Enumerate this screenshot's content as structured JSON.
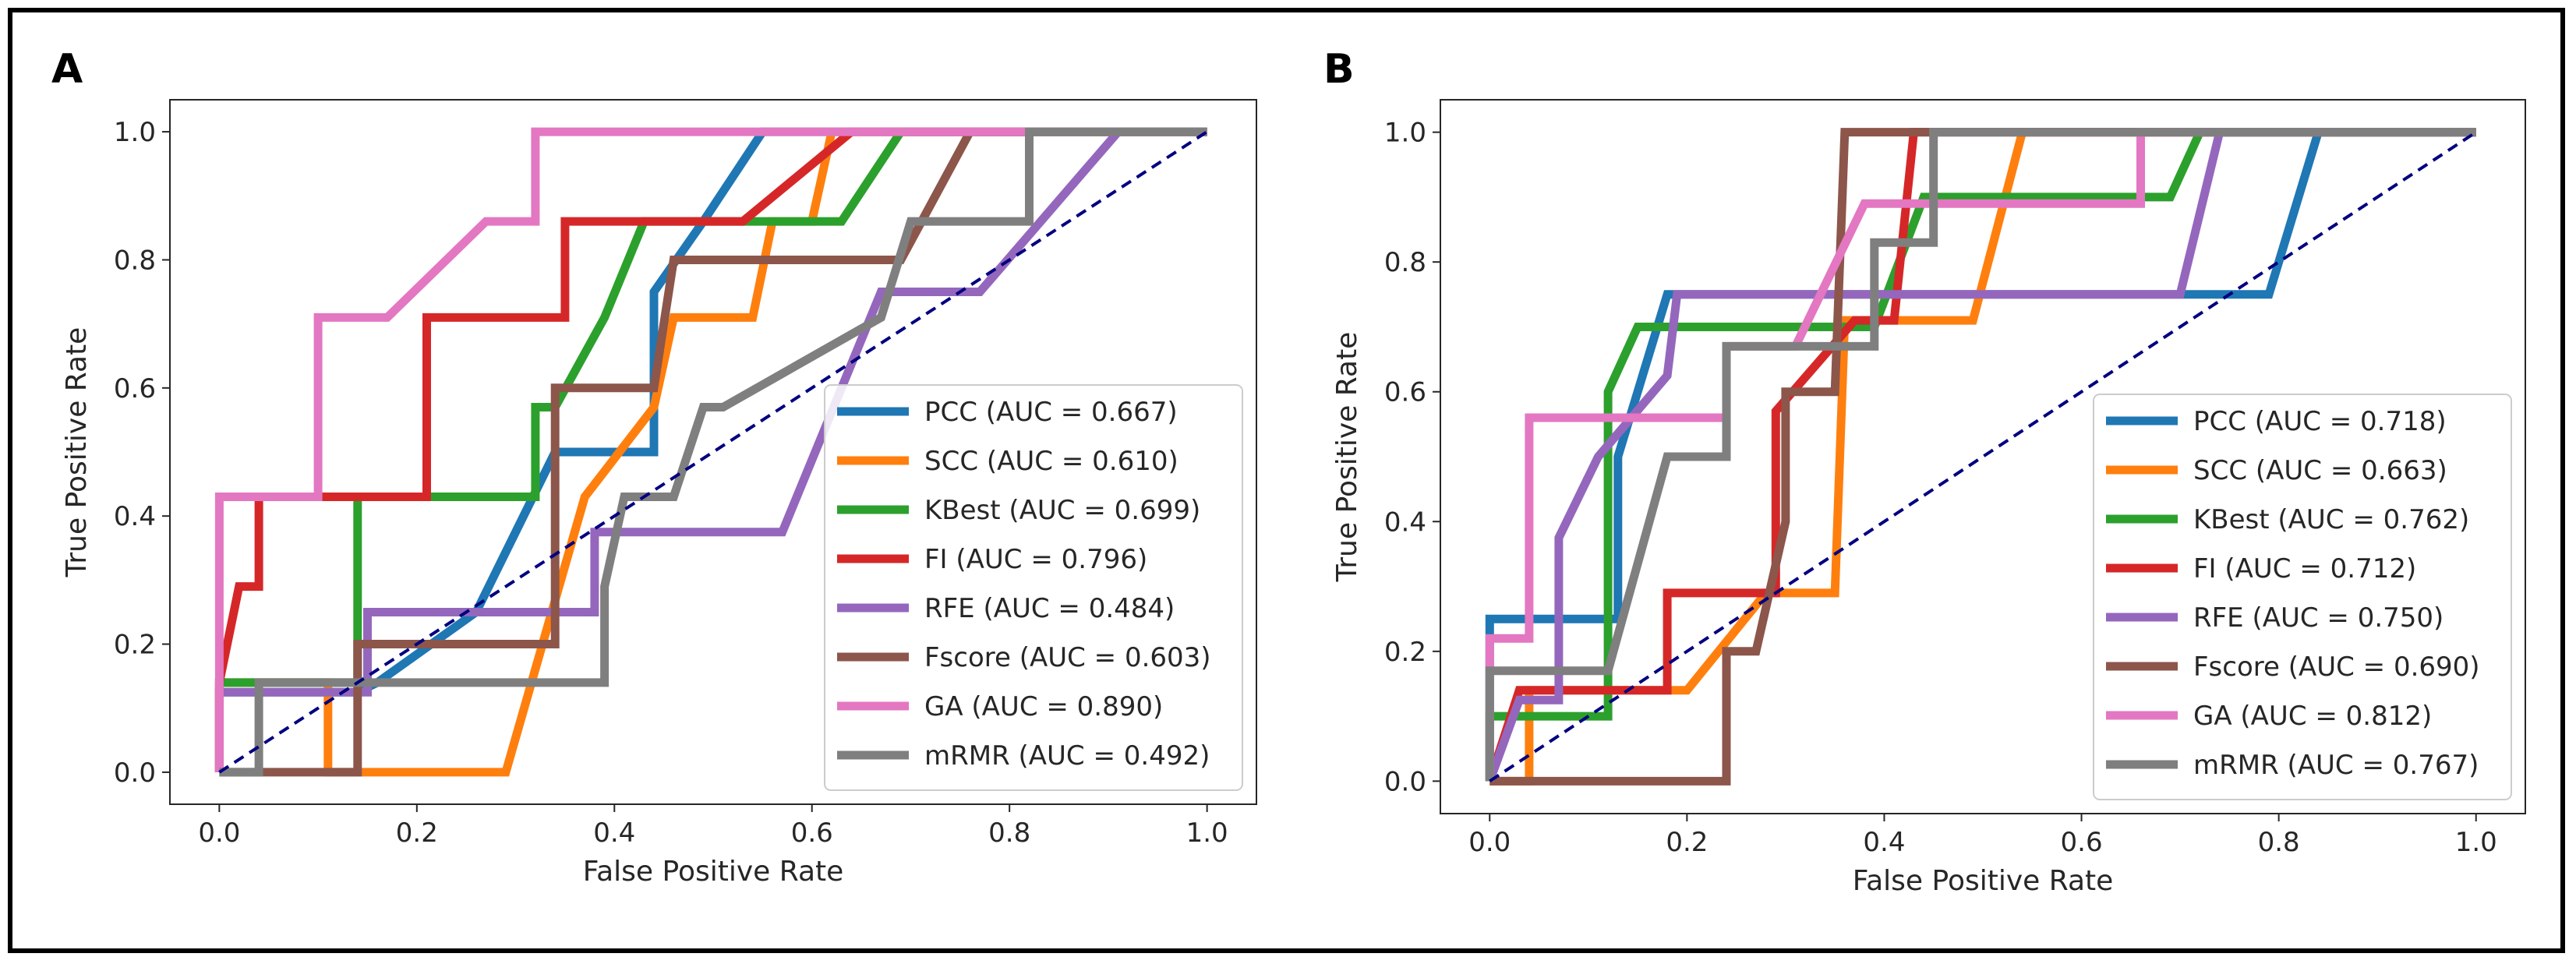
{
  "colors": {
    "PCC": "#1f77b4",
    "SCC": "#ff7f0e",
    "KBest": "#2ca02c",
    "FI": "#d62728",
    "RFE": "#9467bd",
    "Fscore": "#8c564b",
    "GA": "#e377c2",
    "mRMR": "#7f7f7f",
    "diagonal": "#000080"
  },
  "chart_data": [
    {
      "panel": "A",
      "type": "line",
      "xlabel": "False Positive Rate",
      "ylabel": "True Positive Rate",
      "xlim": [
        -0.05,
        1.05
      ],
      "ylim": [
        -0.05,
        1.05
      ],
      "xticks": [
        "0.0",
        "0.2",
        "0.4",
        "0.6",
        "0.8",
        "1.0"
      ],
      "yticks": [
        "0.0",
        "0.2",
        "0.4",
        "0.6",
        "0.8",
        "1.0"
      ],
      "legend_position": "lower-right",
      "series": [
        {
          "key": "PCC",
          "label": "PCC (AUC = 0.667)",
          "x": [
            0,
            0,
            0.14,
            0.16,
            0.26,
            0.34,
            0.34,
            0.44,
            0.44,
            0.49,
            0.55,
            1
          ],
          "y": [
            0,
            0.125,
            0.125,
            0.14,
            0.25,
            0.5,
            0.5,
            0.5,
            0.75,
            0.86,
            1,
            1
          ]
        },
        {
          "key": "SCC",
          "label": "SCC (AUC = 0.610)",
          "x": [
            0,
            0,
            0.11,
            0.11,
            0.29,
            0.37,
            0.44,
            0.44,
            0.46,
            0.54,
            0.56,
            0.6,
            0.62,
            1
          ],
          "y": [
            0,
            0.14,
            0.14,
            0,
            0,
            0.43,
            0.57,
            0.57,
            0.71,
            0.71,
            0.86,
            0.86,
            1,
            1
          ]
        },
        {
          "key": "KBest",
          "label": "KBest (AUC = 0.699)",
          "x": [
            0,
            0,
            0.14,
            0.14,
            0.32,
            0.32,
            0.34,
            0.39,
            0.39,
            0.43,
            0.46,
            0.51,
            0.63,
            0.69,
            1
          ],
          "y": [
            0,
            0.14,
            0.14,
            0.43,
            0.43,
            0.57,
            0.57,
            0.71,
            0.71,
            0.86,
            0.86,
            0.86,
            0.86,
            1,
            1
          ]
        },
        {
          "key": "FI",
          "label": "FI (AUC = 0.796)",
          "x": [
            0,
            0,
            0.02,
            0.04,
            0.04,
            0.07,
            0.21,
            0.21,
            0.35,
            0.35,
            0.53,
            0.64,
            1
          ],
          "y": [
            0,
            0.14,
            0.29,
            0.29,
            0.43,
            0.43,
            0.43,
            0.71,
            0.71,
            0.86,
            0.86,
            1,
            1
          ]
        },
        {
          "key": "RFE",
          "label": "RFE (AUC = 0.484)",
          "x": [
            0,
            0,
            0.15,
            0.15,
            0.38,
            0.38,
            0.57,
            0.67,
            0.72,
            0.74,
            0.77,
            0.91,
            1
          ],
          "y": [
            0,
            0.125,
            0.125,
            0.25,
            0.25,
            0.375,
            0.375,
            0.75,
            0.75,
            0.75,
            0.75,
            1,
            1
          ]
        },
        {
          "key": "Fscore",
          "label": "Fscore (AUC = 0.603)",
          "x": [
            0,
            0.14,
            0.14,
            0.34,
            0.34,
            0.44,
            0.46,
            0.69,
            0.69,
            0.76,
            1
          ],
          "y": [
            0,
            0,
            0.2,
            0.2,
            0.6,
            0.6,
            0.8,
            0.8,
            0.8,
            1,
            1
          ]
        },
        {
          "key": "GA",
          "label": "GA (AUC = 0.890)",
          "x": [
            0,
            0,
            0.1,
            0.1,
            0.17,
            0.27,
            0.32,
            0.32,
            1
          ],
          "y": [
            0,
            0.43,
            0.43,
            0.71,
            0.71,
            0.86,
            0.86,
            1,
            1
          ]
        },
        {
          "key": "mRMR",
          "label": "mRMR (AUC = 0.492)",
          "x": [
            0,
            0.04,
            0.04,
            0.39,
            0.39,
            0.41,
            0.46,
            0.49,
            0.51,
            0.67,
            0.67,
            0.7,
            0.82,
            0.82,
            1
          ],
          "y": [
            0,
            0,
            0.14,
            0.14,
            0.29,
            0.43,
            0.43,
            0.57,
            0.57,
            0.71,
            0.71,
            0.86,
            0.86,
            1,
            1
          ]
        }
      ]
    },
    {
      "panel": "B",
      "type": "line",
      "xlabel": "False Positive Rate",
      "ylabel": "True Positive Rate",
      "xlim": [
        -0.05,
        1.05
      ],
      "ylim": [
        -0.05,
        1.05
      ],
      "xticks": [
        "0.0",
        "0.2",
        "0.4",
        "0.6",
        "0.8",
        "1.0"
      ],
      "yticks": [
        "0.0",
        "0.2",
        "0.4",
        "0.6",
        "0.8",
        "1.0"
      ],
      "legend_position": "lower-right",
      "series": [
        {
          "key": "PCC",
          "label": "PCC (AUC = 0.718)",
          "x": [
            0,
            0,
            0.13,
            0.13,
            0.18,
            0.18,
            0.79,
            0.84,
            1
          ],
          "y": [
            0,
            0.25,
            0.25,
            0.5,
            0.75,
            0.75,
            0.75,
            1,
            1
          ]
        },
        {
          "key": "SCC",
          "label": "SCC (AUC = 0.663)",
          "x": [
            0,
            0.02,
            0.04,
            0.04,
            0.2,
            0.28,
            0.35,
            0.35,
            0.36,
            0.49,
            0.49,
            0.54,
            1
          ],
          "y": [
            0,
            0,
            0,
            0.14,
            0.14,
            0.29,
            0.29,
            0.29,
            0.71,
            0.71,
            0.71,
            1,
            1
          ]
        },
        {
          "key": "KBest",
          "label": "KBest (AUC = 0.762)",
          "x": [
            0,
            0,
            0.12,
            0.12,
            0.15,
            0.27,
            0.39,
            0.44,
            0.69,
            0.72,
            1
          ],
          "y": [
            0,
            0.1,
            0.1,
            0.6,
            0.7,
            0.7,
            0.7,
            0.9,
            0.9,
            1,
            1
          ]
        },
        {
          "key": "FI",
          "label": "FI (AUC = 0.712)",
          "x": [
            0,
            0.03,
            0.18,
            0.18,
            0.29,
            0.29,
            0.37,
            0.41,
            0.41,
            0.43,
            0.43,
            1
          ],
          "y": [
            0,
            0.14,
            0.14,
            0.29,
            0.29,
            0.57,
            0.71,
            0.71,
            0.71,
            1,
            1,
            1
          ]
        },
        {
          "key": "RFE",
          "label": "RFE (AUC = 0.750)",
          "x": [
            0,
            0.03,
            0.07,
            0.07,
            0.11,
            0.18,
            0.19,
            0.66,
            0.7,
            0.74,
            1
          ],
          "y": [
            0,
            0.125,
            0.125,
            0.375,
            0.5,
            0.625,
            0.75,
            0.75,
            0.75,
            1,
            1
          ]
        },
        {
          "key": "Fscore",
          "label": "Fscore (AUC = 0.690)",
          "x": [
            0,
            0.24,
            0.24,
            0.27,
            0.3,
            0.3,
            0.35,
            0.36,
            0.36,
            0.44,
            1
          ],
          "y": [
            0,
            0,
            0.2,
            0.2,
            0.4,
            0.6,
            0.6,
            1,
            1,
            1,
            1
          ]
        },
        {
          "key": "GA",
          "label": "GA (AUC = 0.812)",
          "x": [
            0,
            0,
            0.04,
            0.04,
            0.24,
            0.24,
            0.31,
            0.38,
            0.66,
            0.66,
            1
          ],
          "y": [
            0,
            0.22,
            0.22,
            0.56,
            0.56,
            0.67,
            0.67,
            0.89,
            0.89,
            1,
            1
          ]
        },
        {
          "key": "mRMR",
          "label": "mRMR (AUC = 0.767)",
          "x": [
            0,
            0,
            0.12,
            0.18,
            0.24,
            0.24,
            0.39,
            0.39,
            0.45,
            0.45,
            1
          ],
          "y": [
            0,
            0.17,
            0.17,
            0.5,
            0.5,
            0.67,
            0.67,
            0.83,
            0.83,
            1,
            1
          ]
        }
      ]
    }
  ]
}
